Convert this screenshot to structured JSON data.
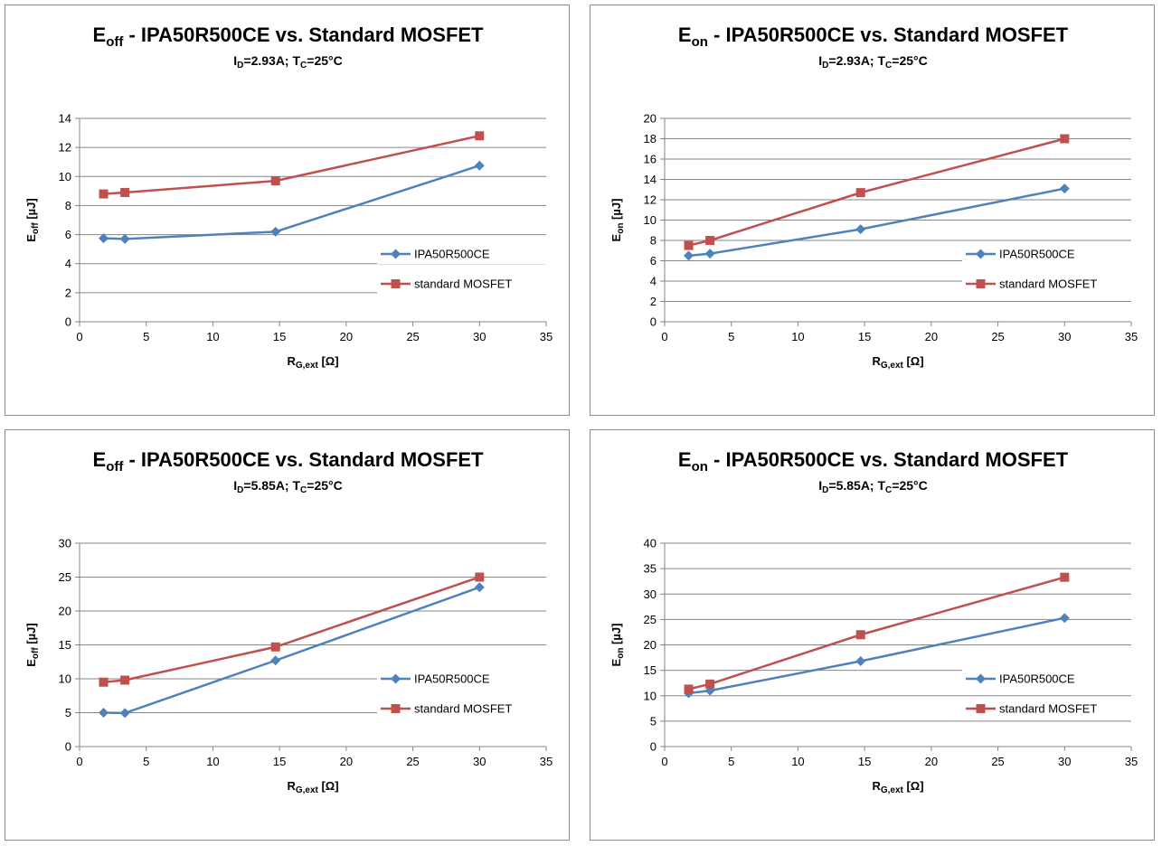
{
  "chart_data": [
    {
      "type": "line",
      "title": {
        "main": "E",
        "main_sub": "off",
        "main_rest": " - IPA50R500CE vs. Standard MOSFET"
      },
      "subtitle": {
        "a": "I",
        "a_sub": "D",
        "b": "=2.93A; T",
        "b_sub": "C",
        "c": "=25°C"
      },
      "xlabel": {
        "base": "R",
        "sub": "G,ext",
        "rest": " [Ω]"
      },
      "ylabel": {
        "base": "E",
        "sub": "off",
        "rest": " [µJ]"
      },
      "xlim": [
        0,
        35
      ],
      "xticks": [
        0,
        5,
        10,
        15,
        20,
        25,
        30,
        35
      ],
      "ylim": [
        0,
        14
      ],
      "yticks": [
        0,
        2,
        4,
        6,
        8,
        10,
        12,
        14
      ],
      "grid": "horizontal",
      "legend_position": "right",
      "series": [
        {
          "name": "IPA50R500CE",
          "color": "#4f81bd",
          "marker": "diamond",
          "x": [
            1.8,
            3.4,
            14.7,
            30
          ],
          "y": [
            5.75,
            5.7,
            6.2,
            10.75
          ]
        },
        {
          "name": "standard MOSFET",
          "color": "#c0504d",
          "marker": "square",
          "x": [
            1.8,
            3.4,
            14.7,
            30
          ],
          "y": [
            8.8,
            8.9,
            9.7,
            12.8
          ]
        }
      ]
    },
    {
      "type": "line",
      "title": {
        "main": "E",
        "main_sub": "on",
        "main_rest": " - IPA50R500CE vs. Standard MOSFET"
      },
      "subtitle": {
        "a": "I",
        "a_sub": "D",
        "b": "=2.93A; T",
        "b_sub": "C",
        "c": "=25°C"
      },
      "xlabel": {
        "base": "R",
        "sub": "G,ext",
        "rest": " [Ω]"
      },
      "ylabel": {
        "base": "E",
        "sub": "on",
        "rest": " [µJ]"
      },
      "xlim": [
        0,
        35
      ],
      "xticks": [
        0,
        5,
        10,
        15,
        20,
        25,
        30,
        35
      ],
      "ylim": [
        0,
        20
      ],
      "yticks": [
        0,
        2,
        4,
        6,
        8,
        10,
        12,
        14,
        16,
        18,
        20
      ],
      "grid": "horizontal",
      "legend_position": "right",
      "series": [
        {
          "name": "IPA50R500CE",
          "color": "#4f81bd",
          "marker": "diamond",
          "x": [
            1.8,
            3.4,
            14.7,
            30
          ],
          "y": [
            6.5,
            6.7,
            9.1,
            13.1
          ]
        },
        {
          "name": "standard MOSFET",
          "color": "#c0504d",
          "marker": "square",
          "x": [
            1.8,
            3.4,
            14.7,
            30
          ],
          "y": [
            7.5,
            8.0,
            12.7,
            18.0
          ]
        }
      ]
    },
    {
      "type": "line",
      "title": {
        "main": "E",
        "main_sub": "off",
        "main_rest": " - IPA50R500CE vs. Standard MOSFET"
      },
      "subtitle": {
        "a": "I",
        "a_sub": "D",
        "b": "=5.85A; T",
        "b_sub": "C",
        "c": "=25°C"
      },
      "xlabel": {
        "base": "R",
        "sub": "G,ext",
        "rest": " [Ω]"
      },
      "ylabel": {
        "base": "E",
        "sub": "off",
        "rest": " [µJ]"
      },
      "xlim": [
        0,
        35
      ],
      "xticks": [
        0,
        5,
        10,
        15,
        20,
        25,
        30,
        35
      ],
      "ylim": [
        0,
        30
      ],
      "yticks": [
        0,
        5,
        10,
        15,
        20,
        25,
        30
      ],
      "grid": "horizontal",
      "legend_position": "right",
      "series": [
        {
          "name": "IPA50R500CE",
          "color": "#4f81bd",
          "marker": "diamond",
          "x": [
            1.8,
            3.4,
            14.7,
            30
          ],
          "y": [
            5.0,
            4.95,
            12.7,
            23.5
          ]
        },
        {
          "name": "standard MOSFET",
          "color": "#c0504d",
          "marker": "square",
          "x": [
            1.8,
            3.4,
            14.7,
            30
          ],
          "y": [
            9.5,
            9.8,
            14.7,
            25.0
          ]
        }
      ]
    },
    {
      "type": "line",
      "title": {
        "main": "E",
        "main_sub": "on",
        "main_rest": " - IPA50R500CE vs. Standard MOSFET"
      },
      "subtitle": {
        "a": "I",
        "a_sub": "D",
        "b": "=5.85A; T",
        "b_sub": "C",
        "c": "=25°C"
      },
      "xlabel": {
        "base": "R",
        "sub": "G,ext",
        "rest": " [Ω]"
      },
      "ylabel": {
        "base": "E",
        "sub": "on",
        "rest": " [µJ]"
      },
      "xlim": [
        0,
        35
      ],
      "xticks": [
        0,
        5,
        10,
        15,
        20,
        25,
        30,
        35
      ],
      "ylim": [
        0,
        40
      ],
      "yticks": [
        0,
        5,
        10,
        15,
        20,
        25,
        30,
        35,
        40
      ],
      "grid": "horizontal",
      "legend_position": "right",
      "series": [
        {
          "name": "IPA50R500CE",
          "color": "#4f81bd",
          "marker": "diamond",
          "x": [
            1.8,
            3.4,
            14.7,
            30
          ],
          "y": [
            10.5,
            11.0,
            16.8,
            25.3
          ]
        },
        {
          "name": "standard MOSFET",
          "color": "#c0504d",
          "marker": "square",
          "x": [
            1.8,
            3.4,
            14.7,
            30
          ],
          "y": [
            11.3,
            12.3,
            22.0,
            33.3
          ]
        }
      ]
    }
  ]
}
